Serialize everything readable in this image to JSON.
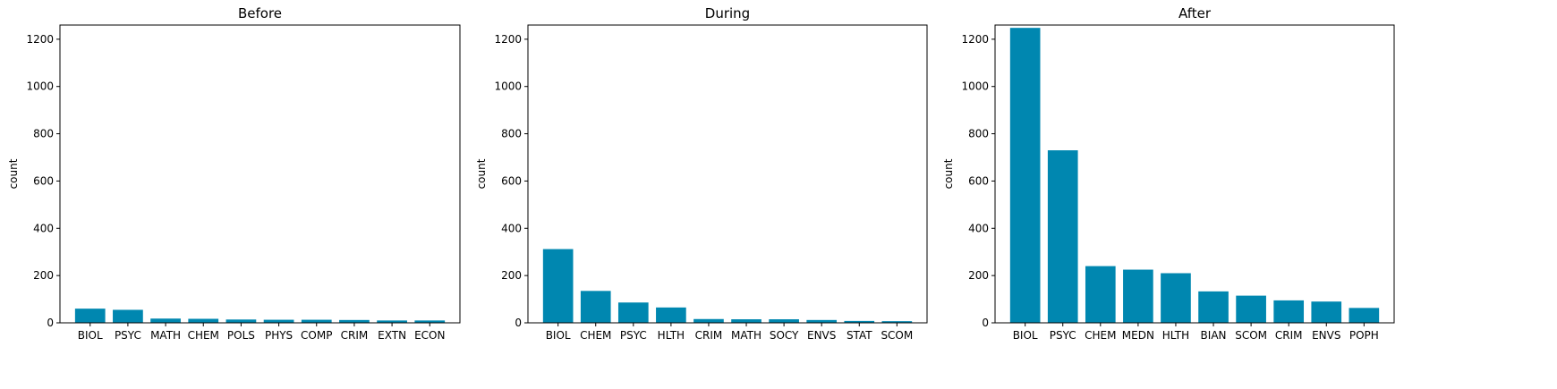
{
  "chart_data": [
    {
      "type": "bar",
      "title": "Before",
      "xlabel": "",
      "ylabel": "count",
      "ylim": [
        0,
        1260
      ],
      "yticks": [
        0,
        200,
        400,
        600,
        800,
        1000,
        1200
      ],
      "categories": [
        "BIOL",
        "PSYC",
        "MATH",
        "CHEM",
        "POLS",
        "PHYS",
        "COMP",
        "CRIM",
        "EXTN",
        "ECON"
      ],
      "values": [
        60,
        55,
        18,
        17,
        14,
        13,
        13,
        12,
        10,
        10
      ],
      "color": "#0087b0",
      "grid": false,
      "legend": "none"
    },
    {
      "type": "bar",
      "title": "During",
      "xlabel": "",
      "ylabel": "count",
      "ylim": [
        0,
        1260
      ],
      "yticks": [
        0,
        200,
        400,
        600,
        800,
        1000,
        1200
      ],
      "categories": [
        "BIOL",
        "CHEM",
        "PSYC",
        "HLTH",
        "CRIM",
        "MATH",
        "SOCY",
        "ENVS",
        "STAT",
        "SCOM"
      ],
      "values": [
        312,
        135,
        86,
        65,
        16,
        15,
        15,
        12,
        8,
        7
      ],
      "color": "#0087b0",
      "grid": false,
      "legend": "none"
    },
    {
      "type": "bar",
      "title": "After",
      "xlabel": "",
      "ylabel": "count",
      "ylim": [
        0,
        1260
      ],
      "yticks": [
        0,
        200,
        400,
        600,
        800,
        1000,
        1200
      ],
      "categories": [
        "BIOL",
        "PSYC",
        "CHEM",
        "MEDN",
        "HLTH",
        "BIAN",
        "SCOM",
        "CRIM",
        "ENVS",
        "POPH"
      ],
      "values": [
        1248,
        730,
        240,
        225,
        210,
        133,
        115,
        95,
        90,
        63
      ],
      "color": "#0087b0",
      "grid": false,
      "legend": "none"
    }
  ]
}
